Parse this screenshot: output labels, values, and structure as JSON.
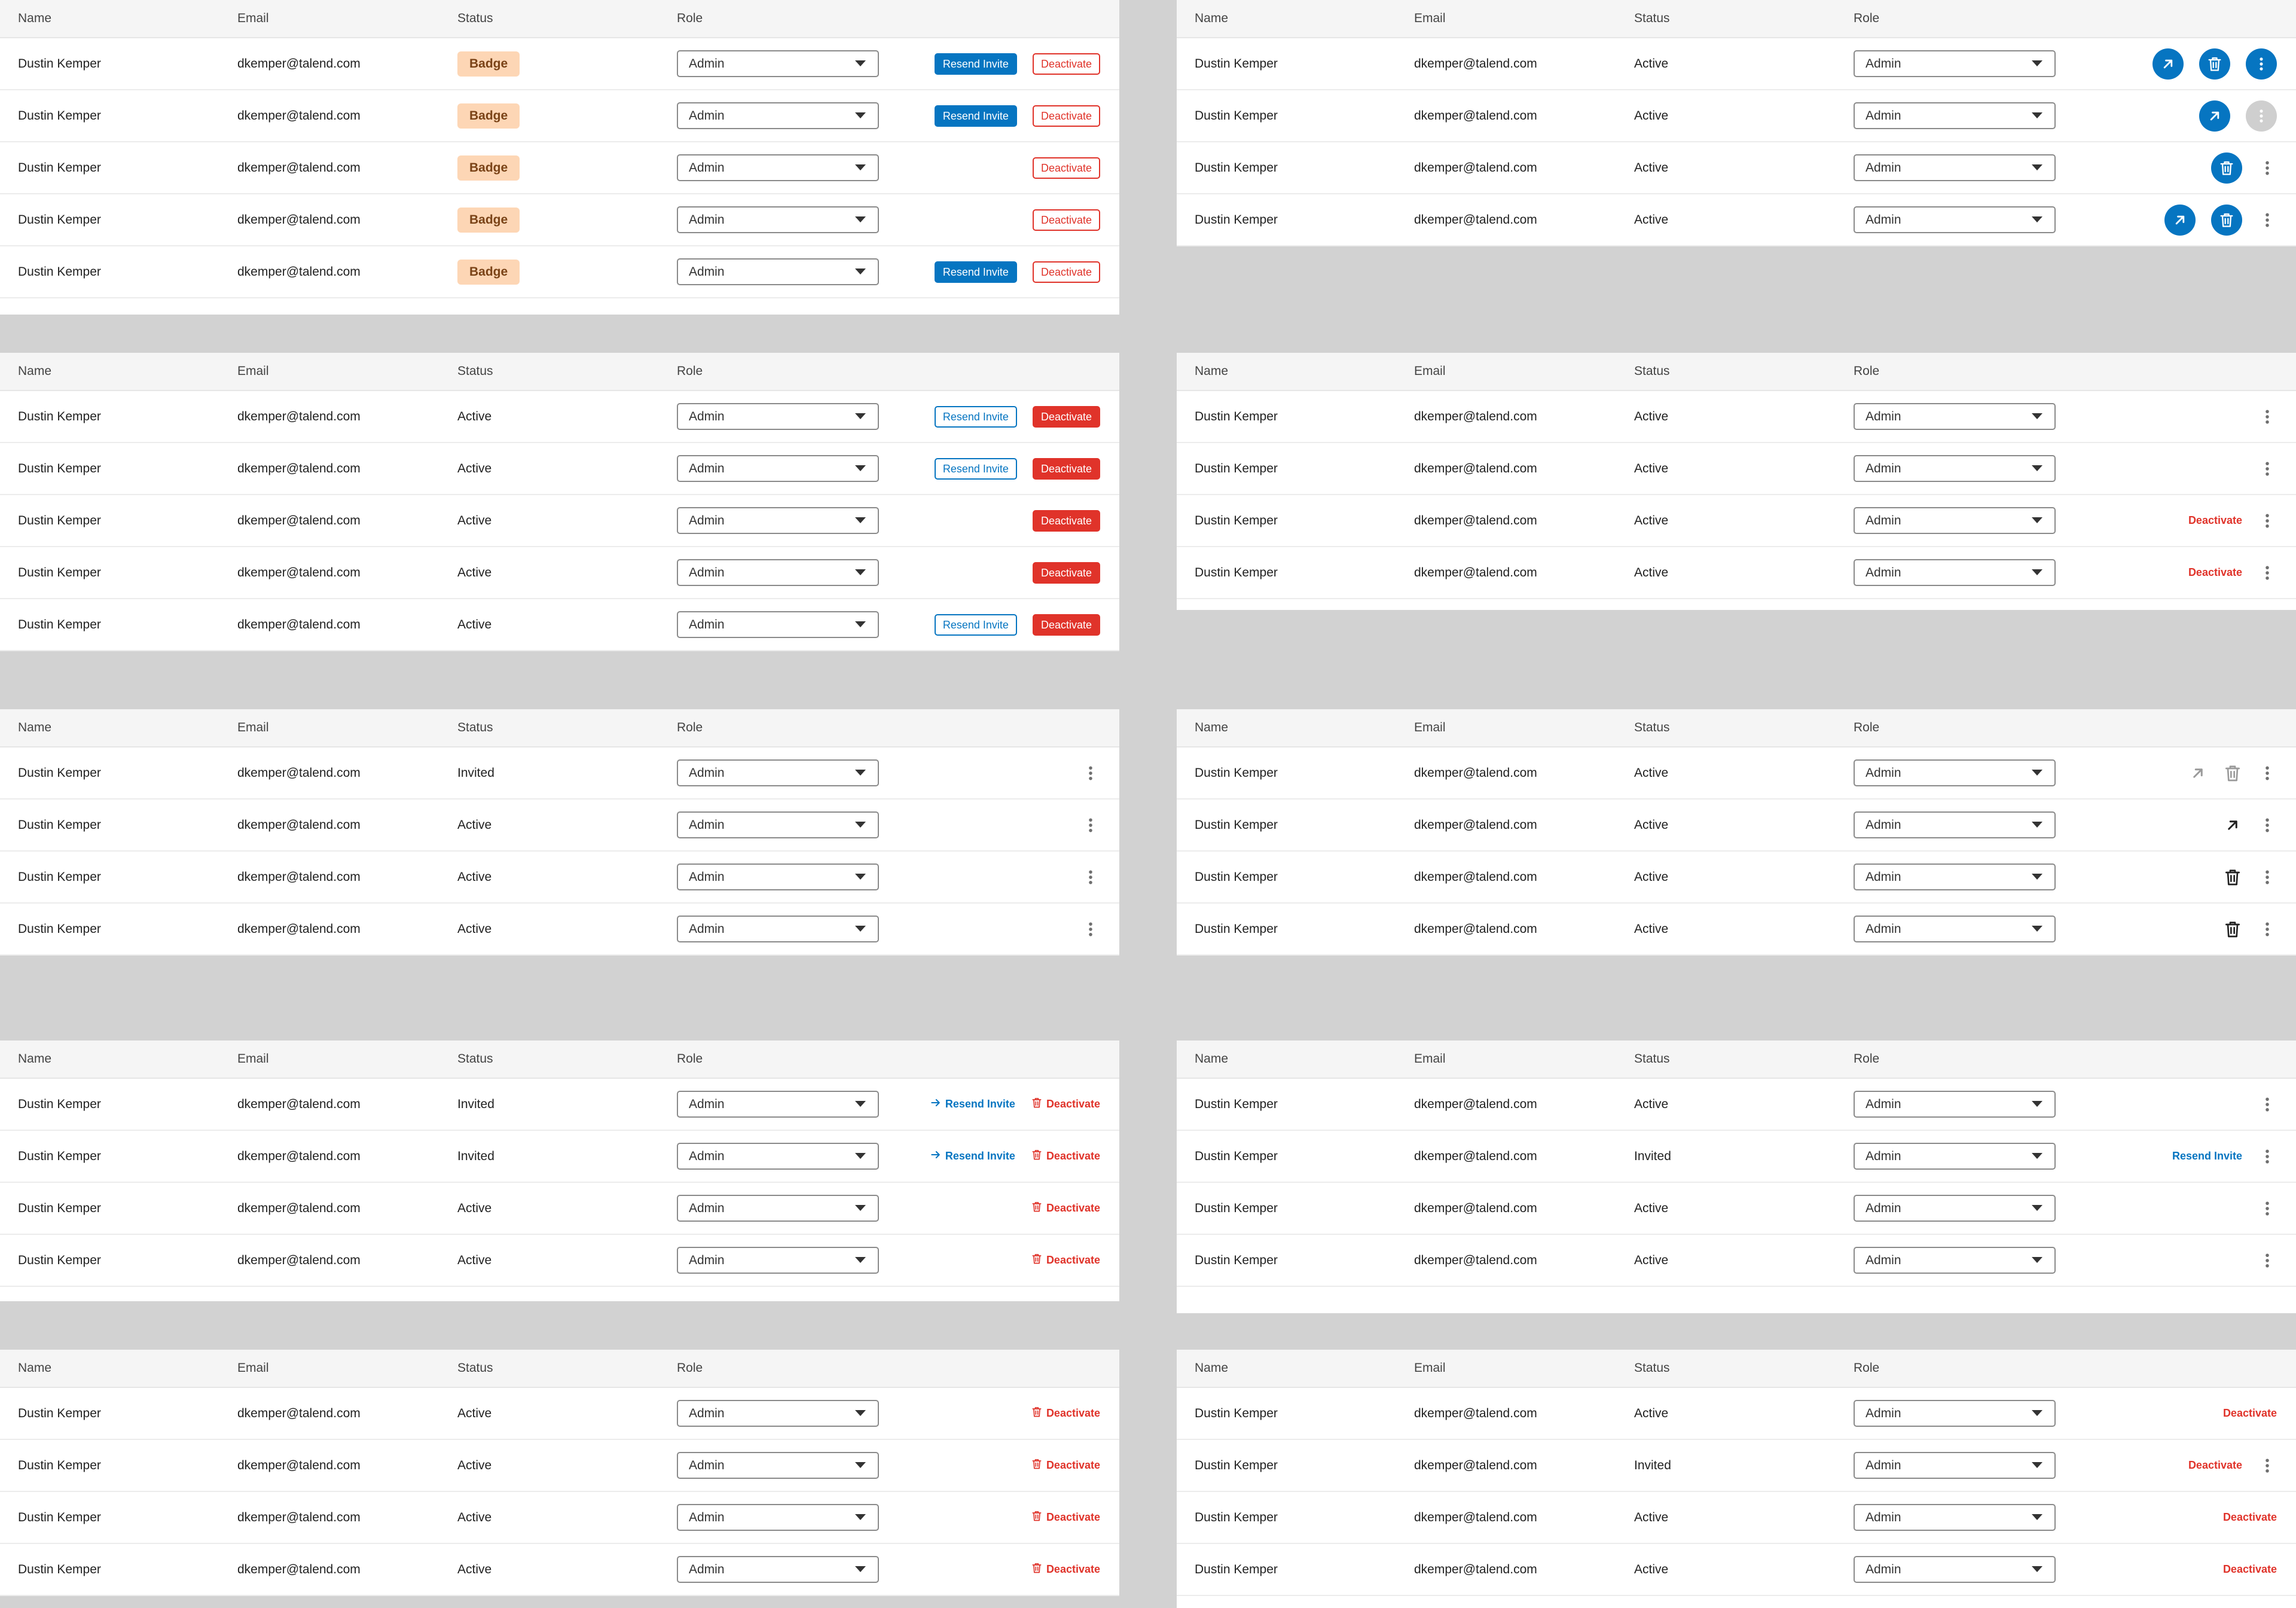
{
  "columns": {
    "name": "Name",
    "email": "Email",
    "status": "Status",
    "role": "Role"
  },
  "labels": {
    "resend": "Resend Invite",
    "deactivate": "Deactivate"
  },
  "colors": {
    "primary": "#0675c1",
    "danger": "#e0332a",
    "badge_bg": "#fdd6b5",
    "panel_bg": "#ffffff",
    "page_bg": "#d2d2d2"
  },
  "icons": [
    "external-link-icon",
    "trash-icon",
    "kebab-menu-icon",
    "arrow-right-icon",
    "caret-down-icon"
  ],
  "panels": [
    {
      "rows": [
        {
          "name": "Dustin Kemper",
          "email": "dkemper@talend.com",
          "status": "Badge",
          "role": "Admin"
        },
        {
          "name": "Dustin Kemper",
          "email": "dkemper@talend.com",
          "status": "Badge",
          "role": "Admin"
        },
        {
          "name": "Dustin Kemper",
          "email": "dkemper@talend.com",
          "status": "Badge",
          "role": "Admin"
        },
        {
          "name": "Dustin Kemper",
          "email": "dkemper@talend.com",
          "status": "Badge",
          "role": "Admin"
        },
        {
          "name": "Dustin Kemper",
          "email": "dkemper@talend.com",
          "status": "Badge",
          "role": "Admin"
        }
      ]
    },
    {
      "rows": [
        {
          "name": "Dustin Kemper",
          "email": "dkemper@talend.com",
          "status": "Active",
          "role": "Admin"
        },
        {
          "name": "Dustin Kemper",
          "email": "dkemper@talend.com",
          "status": "Active",
          "role": "Admin"
        },
        {
          "name": "Dustin Kemper",
          "email": "dkemper@talend.com",
          "status": "Active",
          "role": "Admin"
        },
        {
          "name": "Dustin Kemper",
          "email": "dkemper@talend.com",
          "status": "Active",
          "role": "Admin"
        }
      ]
    },
    {
      "rows": [
        {
          "name": "Dustin Kemper",
          "email": "dkemper@talend.com",
          "status": "Active",
          "role": "Admin"
        },
        {
          "name": "Dustin Kemper",
          "email": "dkemper@talend.com",
          "status": "Active",
          "role": "Admin"
        },
        {
          "name": "Dustin Kemper",
          "email": "dkemper@talend.com",
          "status": "Active",
          "role": "Admin"
        },
        {
          "name": "Dustin Kemper",
          "email": "dkemper@talend.com",
          "status": "Active",
          "role": "Admin"
        },
        {
          "name": "Dustin Kemper",
          "email": "dkemper@talend.com",
          "status": "Active",
          "role": "Admin"
        }
      ]
    },
    {
      "rows": [
        {
          "name": "Dustin Kemper",
          "email": "dkemper@talend.com",
          "status": "Active",
          "role": "Admin"
        },
        {
          "name": "Dustin Kemper",
          "email": "dkemper@talend.com",
          "status": "Active",
          "role": "Admin"
        },
        {
          "name": "Dustin Kemper",
          "email": "dkemper@talend.com",
          "status": "Active",
          "role": "Admin"
        },
        {
          "name": "Dustin Kemper",
          "email": "dkemper@talend.com",
          "status": "Active",
          "role": "Admin"
        }
      ]
    },
    {
      "rows": [
        {
          "name": "Dustin Kemper",
          "email": "dkemper@talend.com",
          "status": "Invited",
          "role": "Admin"
        },
        {
          "name": "Dustin Kemper",
          "email": "dkemper@talend.com",
          "status": "Active",
          "role": "Admin"
        },
        {
          "name": "Dustin Kemper",
          "email": "dkemper@talend.com",
          "status": "Active",
          "role": "Admin"
        },
        {
          "name": "Dustin Kemper",
          "email": "dkemper@talend.com",
          "status": "Active",
          "role": "Admin"
        }
      ]
    },
    {
      "rows": [
        {
          "name": "Dustin Kemper",
          "email": "dkemper@talend.com",
          "status": "Active",
          "role": "Admin"
        },
        {
          "name": "Dustin Kemper",
          "email": "dkemper@talend.com",
          "status": "Active",
          "role": "Admin"
        },
        {
          "name": "Dustin Kemper",
          "email": "dkemper@talend.com",
          "status": "Active",
          "role": "Admin"
        },
        {
          "name": "Dustin Kemper",
          "email": "dkemper@talend.com",
          "status": "Active",
          "role": "Admin"
        }
      ]
    },
    {
      "rows": [
        {
          "name": "Dustin Kemper",
          "email": "dkemper@talend.com",
          "status": "Invited",
          "role": "Admin"
        },
        {
          "name": "Dustin Kemper",
          "email": "dkemper@talend.com",
          "status": "Invited",
          "role": "Admin"
        },
        {
          "name": "Dustin Kemper",
          "email": "dkemper@talend.com",
          "status": "Active",
          "role": "Admin"
        },
        {
          "name": "Dustin Kemper",
          "email": "dkemper@talend.com",
          "status": "Active",
          "role": "Admin"
        }
      ]
    },
    {
      "rows": [
        {
          "name": "Dustin Kemper",
          "email": "dkemper@talend.com",
          "status": "Active",
          "role": "Admin"
        },
        {
          "name": "Dustin Kemper",
          "email": "dkemper@talend.com",
          "status": "Invited",
          "role": "Admin"
        },
        {
          "name": "Dustin Kemper",
          "email": "dkemper@talend.com",
          "status": "Active",
          "role": "Admin"
        },
        {
          "name": "Dustin Kemper",
          "email": "dkemper@talend.com",
          "status": "Active",
          "role": "Admin"
        }
      ]
    },
    {
      "rows": [
        {
          "name": "Dustin Kemper",
          "email": "dkemper@talend.com",
          "status": "Active",
          "role": "Admin"
        },
        {
          "name": "Dustin Kemper",
          "email": "dkemper@talend.com",
          "status": "Active",
          "role": "Admin"
        },
        {
          "name": "Dustin Kemper",
          "email": "dkemper@talend.com",
          "status": "Active",
          "role": "Admin"
        },
        {
          "name": "Dustin Kemper",
          "email": "dkemper@talend.com",
          "status": "Active",
          "role": "Admin"
        }
      ]
    },
    {
      "rows": [
        {
          "name": "Dustin Kemper",
          "email": "dkemper@talend.com",
          "status": "Active",
          "role": "Admin"
        },
        {
          "name": "Dustin Kemper",
          "email": "dkemper@talend.com",
          "status": "Invited",
          "role": "Admin"
        },
        {
          "name": "Dustin Kemper",
          "email": "dkemper@talend.com",
          "status": "Active",
          "role": "Admin"
        },
        {
          "name": "Dustin Kemper",
          "email": "dkemper@talend.com",
          "status": "Active",
          "role": "Admin"
        }
      ]
    }
  ]
}
